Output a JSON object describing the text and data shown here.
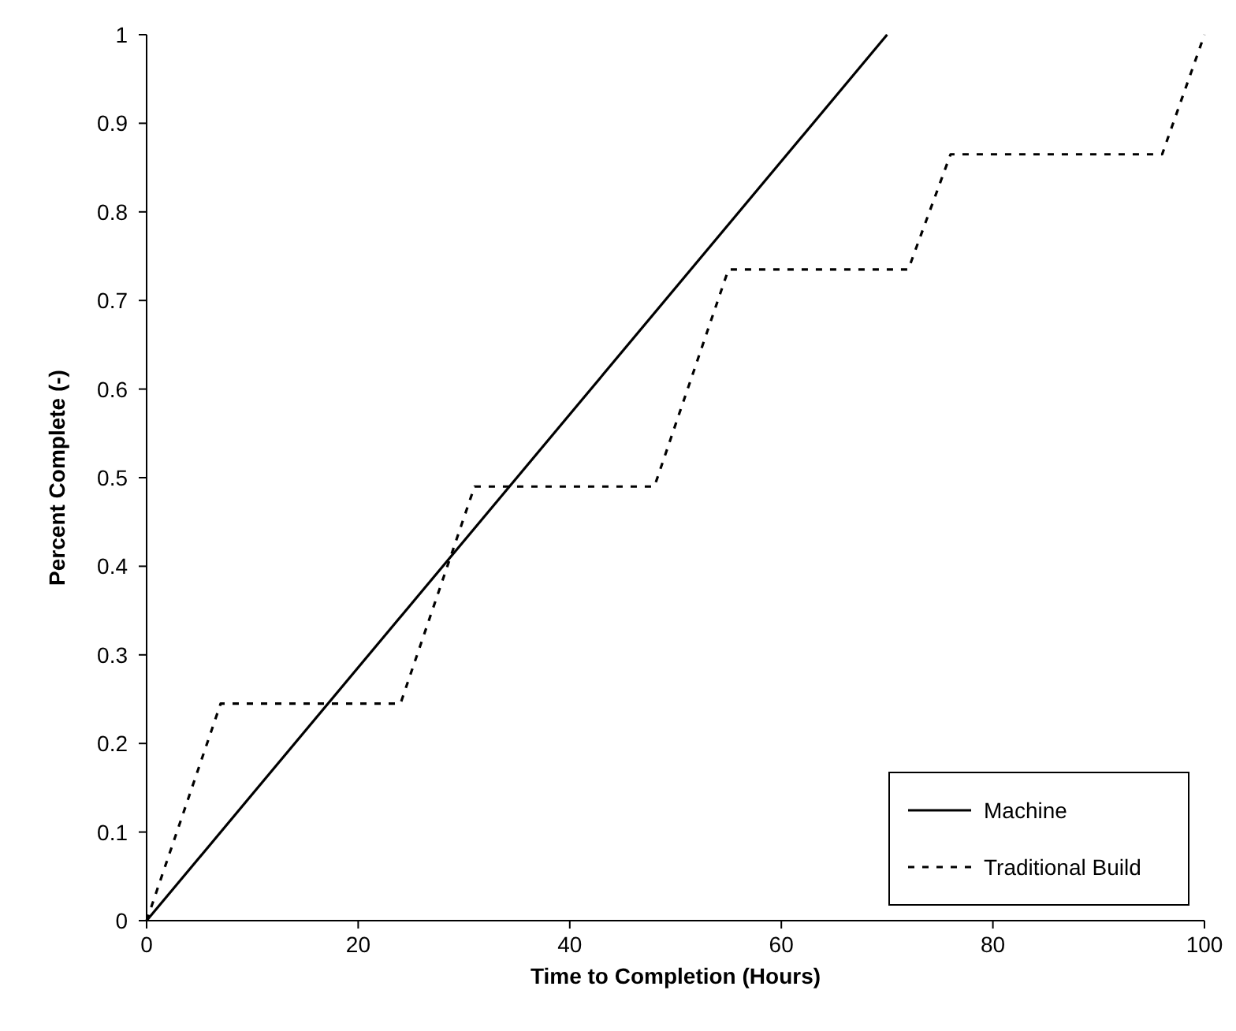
{
  "chart_data": {
    "type": "line",
    "xlabel": "Time to Completion (Hours)",
    "ylabel": "Percent Complete (-)",
    "series": [
      {
        "name": "Machine",
        "color": "#000000",
        "x": [
          0,
          70
        ],
        "values": [
          0,
          1
        ],
        "line_style": "solid"
      },
      {
        "name": "Traditional Build",
        "color": "#000000",
        "x": [
          0,
          7,
          24,
          31,
          48,
          55,
          72,
          76,
          96,
          100
        ],
        "values": [
          0,
          0.245,
          0.245,
          0.49,
          0.49,
          0.735,
          0.735,
          0.865,
          0.865,
          1
        ],
        "line_style": "dashed"
      }
    ],
    "xlim": [
      0,
      100
    ],
    "xticks": [
      0,
      20,
      40,
      60,
      80,
      100
    ],
    "ylim": [
      0,
      1
    ],
    "yticks": [
      0,
      0.1,
      0.2,
      0.3,
      0.4,
      0.5,
      0.6,
      0.7,
      0.8,
      0.9,
      1
    ],
    "grid": false,
    "legend": "bottom right",
    "marker": "none"
  }
}
